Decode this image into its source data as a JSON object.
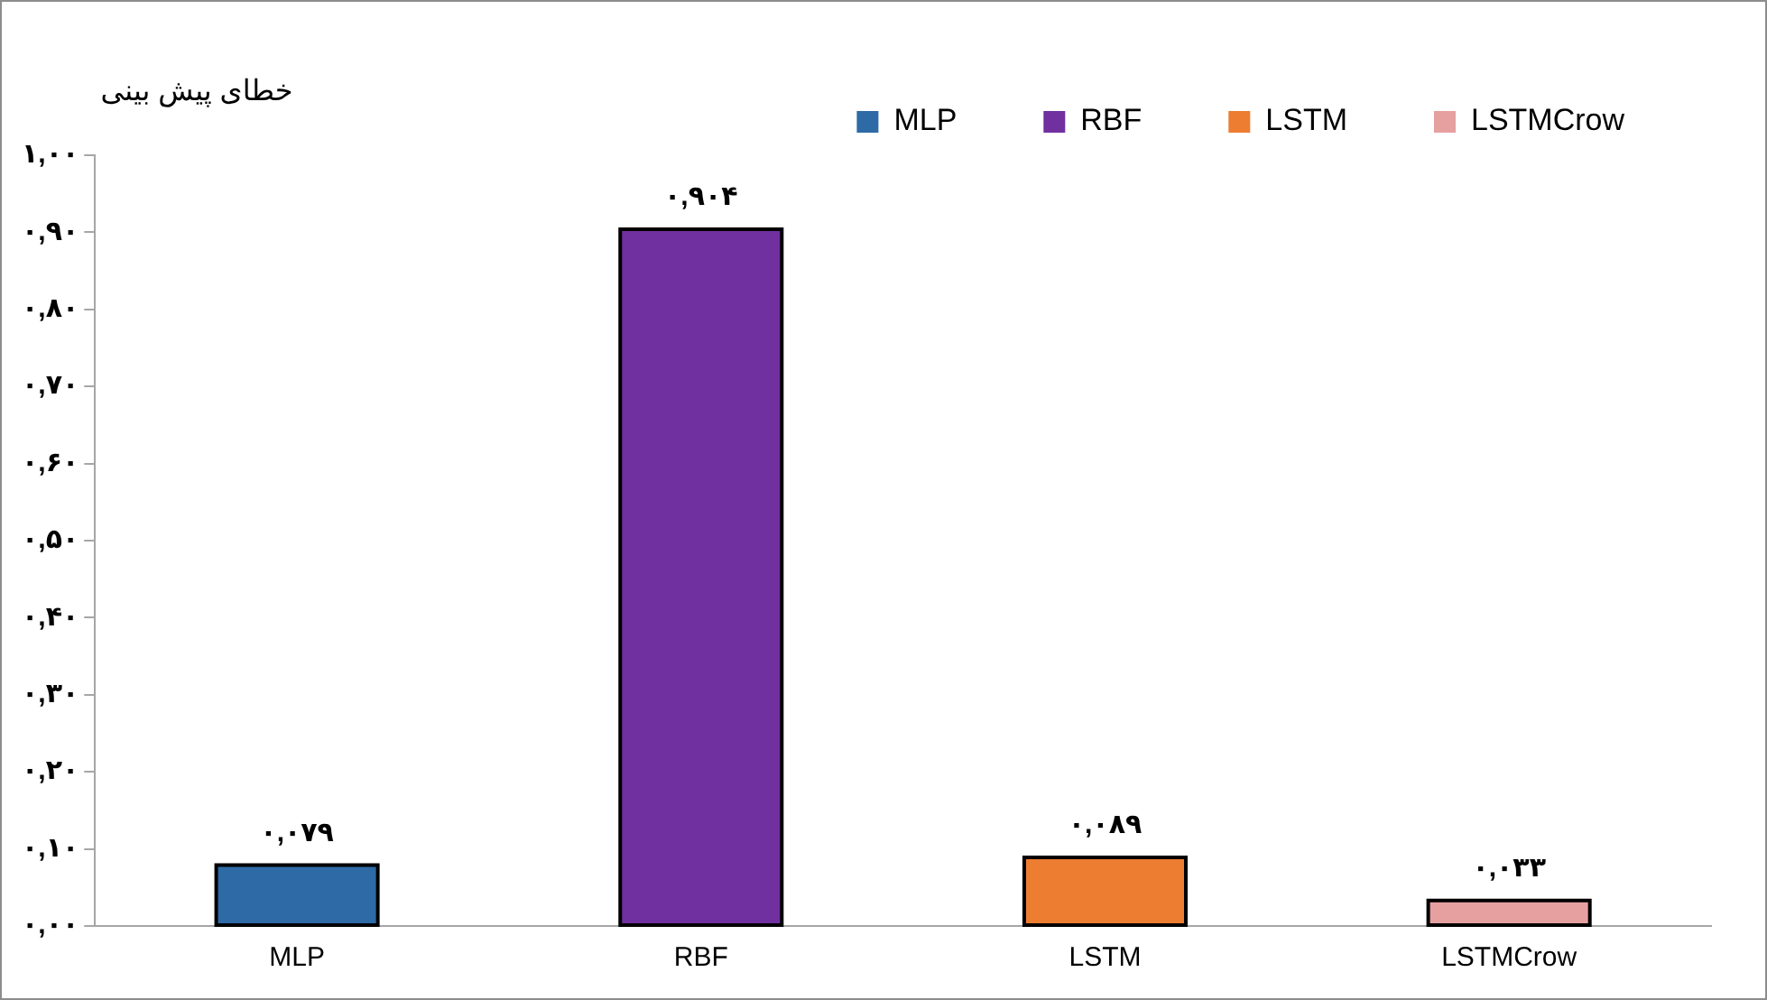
{
  "chart_data": {
    "type": "bar",
    "ylabel": "خطای پیش بینی",
    "categories": [
      "MLP",
      "RBF",
      "LSTM",
      "LSTMCrow"
    ],
    "series": [
      {
        "name": "MLP",
        "color": "#2e6aa6",
        "values": [
          0.079,
          null,
          null,
          null
        ],
        "value_labels": [
          "۰,۰۷۹",
          null,
          null,
          null
        ]
      },
      {
        "name": "RBF",
        "color": "#7030a0",
        "values": [
          null,
          0.904,
          null,
          null
        ],
        "value_labels": [
          null,
          "۰,۹۰۴",
          null,
          null
        ]
      },
      {
        "name": "LSTM",
        "color": "#ed7d31",
        "values": [
          null,
          null,
          0.089,
          null
        ],
        "value_labels": [
          null,
          null,
          "۰,۰۸۹",
          null
        ]
      },
      {
        "name": "LSTMCrow",
        "color": "#e6a0a0",
        "values": [
          null,
          null,
          null,
          0.033
        ],
        "value_labels": [
          null,
          null,
          null,
          "۰,۰۳۳"
        ]
      }
    ],
    "ylim": [
      0,
      1
    ],
    "yticks": [
      {
        "value": 0,
        "label": "۰,۰۰"
      },
      {
        "value": 0.1,
        "label": "۰,۱۰"
      },
      {
        "value": 0.2,
        "label": "۰,۲۰"
      },
      {
        "value": 0.3,
        "label": "۰,۳۰"
      },
      {
        "value": 0.4,
        "label": "۰,۴۰"
      },
      {
        "value": 0.5,
        "label": "۰,۵۰"
      },
      {
        "value": 0.6,
        "label": "۰,۶۰"
      },
      {
        "value": 0.7,
        "label": "۰,۷۰"
      },
      {
        "value": 0.8,
        "label": "۰,۸۰"
      },
      {
        "value": 0.9,
        "label": "۰,۹۰"
      },
      {
        "value": 1,
        "label": "۱,۰۰"
      }
    ],
    "grid": false,
    "legend": "top"
  }
}
